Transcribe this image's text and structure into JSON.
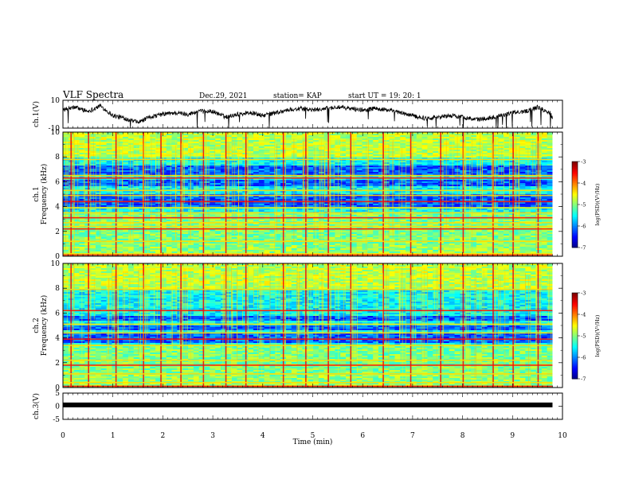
{
  "header": {
    "title": "VLF Spectra",
    "date": "Dec.29, 2021",
    "station": "station= KAP",
    "start": "start  UT =   19: 20: 1"
  },
  "chart_data": [
    {
      "type": "line",
      "panel": "ch1_waveform",
      "ylabel": "ch.1(V)",
      "ylim": [
        -10,
        10
      ],
      "yticks": [
        "10",
        "-10"
      ],
      "xlim": [
        0,
        10
      ],
      "x": [
        0,
        0.25,
        0.5,
        0.75,
        1.0,
        1.25,
        1.5,
        1.75,
        2.0,
        2.25,
        2.5,
        2.75,
        3.0,
        3.25,
        3.5,
        3.75,
        4.0,
        4.25,
        4.5,
        4.75,
        5.0,
        5.25,
        5.5,
        5.75,
        6.0,
        6.25,
        6.5,
        6.75,
        7.0,
        7.25,
        7.5,
        7.75,
        8.0,
        8.25,
        8.5,
        8.75,
        9.0,
        9.25,
        9.5,
        9.75,
        9.8
      ],
      "y": [
        3,
        5,
        2,
        6,
        -1,
        -3,
        -6,
        -2,
        0,
        1,
        0,
        2,
        2,
        -2,
        0,
        1,
        -1,
        1,
        3,
        4,
        3,
        4,
        5,
        4,
        3,
        4,
        3,
        1,
        -1,
        -3,
        -2,
        -1,
        -2,
        -4,
        -3,
        -1,
        1,
        2,
        5,
        1,
        -2
      ]
    },
    {
      "type": "heatmap",
      "panel": "ch1_spectrogram",
      "ylabel": "ch.1",
      "ylabel2": "Frequency  (kHz)",
      "ylim": [
        0,
        10
      ],
      "yticks": [
        "0",
        "2",
        "4",
        "6",
        "8",
        "10"
      ],
      "xlim": [
        0,
        9.8
      ],
      "colorbar": {
        "label": "log(PSD)(V²/Hz)",
        "range": [
          -7,
          -3
        ],
        "ticks": [
          "-3",
          "-4",
          "-5",
          "-6",
          "-7"
        ]
      },
      "features": {
        "lines_khz": [
          0.1,
          0.2,
          1.2,
          2.2,
          2.4,
          2.7,
          3.1,
          3.5,
          3.9,
          4.4,
          4.9,
          5.3,
          6.3,
          6.5,
          7.8
        ],
        "low_zones_khz": [
          [
            4.0,
            5.0
          ],
          [
            5.6,
            6.1
          ],
          [
            6.6,
            7.3
          ]
        ],
        "bursts_min": [
          0.15,
          0.5,
          1.05,
          1.6,
          1.95,
          2.35,
          2.8,
          3.25,
          3.65,
          4.4,
          4.85,
          5.3,
          5.75,
          6.4,
          6.95,
          7.55,
          8.0,
          8.6,
          9.0,
          9.5
        ]
      }
    },
    {
      "type": "heatmap",
      "panel": "ch2_spectrogram",
      "ylabel": "ch.2",
      "ylabel2": "Frequency  (kHz)",
      "ylim": [
        0,
        10
      ],
      "yticks": [
        "0",
        "2",
        "4",
        "6",
        "8",
        "10"
      ],
      "xlim": [
        0,
        9.8
      ],
      "colorbar": {
        "label": "log(PSD)(V²/Hz)",
        "range": [
          -7,
          -3
        ],
        "ticks": [
          "-3",
          "-4",
          "-5",
          "-6",
          "-7"
        ]
      },
      "features": {
        "lines_khz": [
          0.1,
          0.4,
          1.1,
          1.8,
          2.2,
          3.4,
          3.9,
          4.4,
          5.1,
          6.2,
          7.9
        ],
        "low_zones_khz": [
          [
            3.6,
            4.4
          ],
          [
            4.6,
            5.0
          ],
          [
            5.4,
            5.8
          ]
        ],
        "bursts_min": [
          0.15,
          0.5,
          1.05,
          1.6,
          1.95,
          2.35,
          2.8,
          3.25,
          3.65,
          4.4,
          4.85,
          5.3,
          5.75,
          6.4,
          6.95,
          7.55,
          8.0,
          8.6,
          9.0,
          9.5
        ]
      }
    },
    {
      "type": "line",
      "panel": "ch3_waveform",
      "ylabel": "ch.3(V)",
      "ylim": [
        -5,
        5
      ],
      "yticks": [
        "5",
        "0",
        "-5"
      ],
      "xlim": [
        0,
        10
      ],
      "x": [
        0,
        9.8
      ],
      "y": [
        0.5,
        0.5
      ]
    }
  ],
  "xaxis": {
    "label": "Time  (min)",
    "ticks": [
      "0",
      "1",
      "2",
      "3",
      "4",
      "5",
      "6",
      "7",
      "8",
      "9",
      "10"
    ]
  }
}
